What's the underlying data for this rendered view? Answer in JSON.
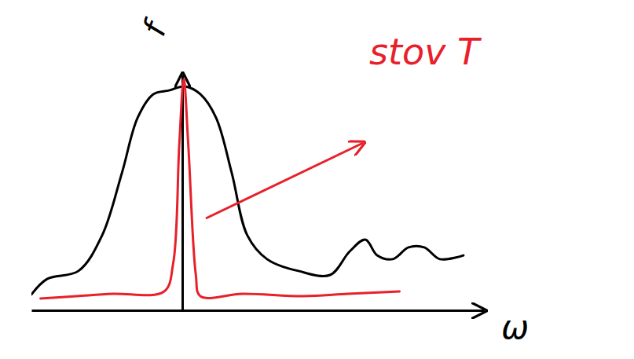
{
  "chart_data": {
    "type": "line",
    "x_label": "ω",
    "y_label": "f",
    "annotation": "stov T",
    "xlim": [
      -5,
      10
    ],
    "ylim": [
      0,
      10
    ],
    "xticks": [],
    "yticks": [],
    "tick_labels": false,
    "grid": false,
    "series": [
      {
        "color": "#000000",
        "x": [
          -5.0,
          -4.48,
          -3.44,
          -2.66,
          -2.0,
          -1.48,
          -0.96,
          -0.44,
          0.08,
          0.6,
          1.12,
          1.64,
          2.16,
          2.81,
          3.85,
          4.9,
          5.55,
          6.07,
          6.46,
          6.98,
          7.5,
          8.02,
          8.54,
          9.32
        ],
        "values": [
          0.67,
          1.33,
          1.67,
          3.17,
          5.83,
          8.17,
          9.17,
          9.33,
          9.5,
          9.17,
          8.17,
          5.83,
          3.17,
          2.17,
          1.67,
          1.5,
          2.5,
          3.0,
          2.33,
          2.17,
          2.67,
          2.67,
          2.17,
          2.33
        ]
      },
      {
        "color": "#e8202a",
        "x": [
          -4.7,
          -3.5,
          -2.3,
          -0.6,
          -0.3,
          -0.1,
          0.05,
          0.2,
          0.45,
          0.6,
          2.0,
          4.0,
          5.5,
          7.2
        ],
        "values": [
          0.5,
          0.6,
          0.7,
          0.8,
          2.0,
          7.0,
          9.8,
          7.0,
          1.5,
          0.6,
          0.7,
          0.6,
          0.7,
          0.8
        ]
      }
    ]
  }
}
